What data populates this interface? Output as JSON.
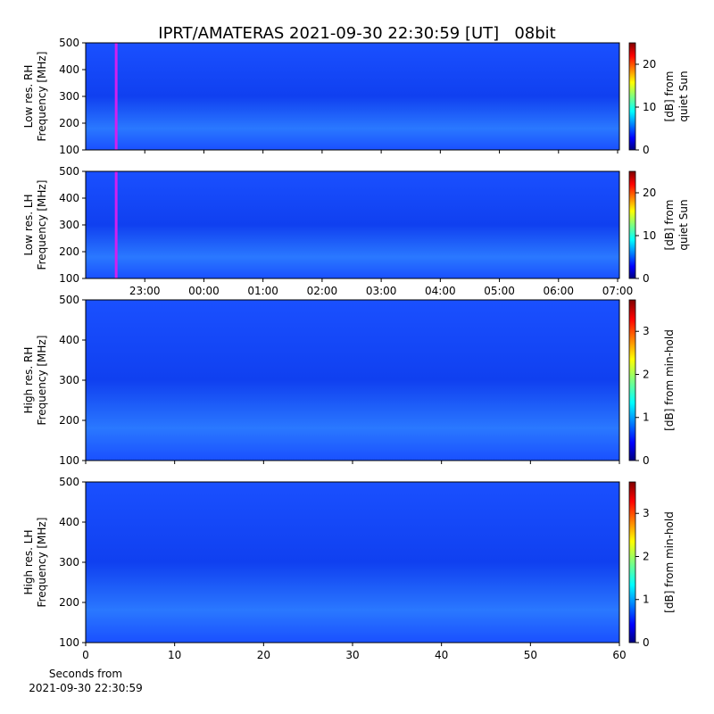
{
  "title": "IPRT/AMATERAS 2021-09-30 22:30:59 [UT]   08bit",
  "chart_data": [
    {
      "type": "spectrogram",
      "ylabel": [
        "Low res. RH",
        "Frequency [MHz]"
      ],
      "xlim": [
        22.0,
        31.03
      ],
      "xticks": [
        23,
        24,
        25,
        26,
        27,
        28,
        29,
        30,
        31
      ],
      "show_xtick_labels": false,
      "ylim": [
        100,
        500
      ],
      "yticks": [
        100,
        200,
        300,
        400,
        500
      ],
      "marker": 22.516,
      "marker_color": "#d020f0",
      "colorbar": {
        "clim": [
          0,
          25
        ],
        "cticks": [
          0,
          10,
          20
        ],
        "label": [
          "[dB] from",
          "quiet Sun"
        ]
      }
    },
    {
      "type": "spectrogram",
      "ylabel": [
        "Low res. LH",
        "Frequency [MHz]"
      ],
      "xlim": [
        22.0,
        31.03
      ],
      "xticks": [
        {
          "value": 23,
          "label": "23:00"
        },
        {
          "value": 24,
          "label": "00:00"
        },
        {
          "value": 25,
          "label": "01:00"
        },
        {
          "value": 26,
          "label": "02:00"
        },
        {
          "value": 27,
          "label": "03:00"
        },
        {
          "value": 28,
          "label": "04:00"
        },
        {
          "value": 29,
          "label": "05:00"
        },
        {
          "value": 30,
          "label": "06:00"
        },
        {
          "value": 31,
          "label": "07:00"
        }
      ],
      "show_xtick_labels": true,
      "ylim": [
        100,
        500
      ],
      "yticks": [
        100,
        200,
        300,
        400,
        500
      ],
      "marker": 22.516,
      "marker_color": "#d020f0",
      "colorbar": {
        "clim": [
          0,
          25
        ],
        "cticks": [
          0,
          10,
          20
        ],
        "label": [
          "[dB] from",
          "quiet Sun"
        ]
      }
    },
    {
      "type": "spectrogram",
      "ylabel": [
        "High res. RH",
        "Frequency [MHz]"
      ],
      "xlim": [
        0,
        60
      ],
      "xticks": [
        0,
        10,
        20,
        30,
        40,
        50,
        60
      ],
      "show_xtick_labels": false,
      "ylim": [
        100,
        500
      ],
      "yticks": [
        100,
        200,
        300,
        400,
        500
      ],
      "colorbar": {
        "clim": [
          0,
          3.73
        ],
        "cticks": [
          0,
          1,
          2,
          3
        ],
        "label": [
          "[dB] from min-hold"
        ]
      }
    },
    {
      "type": "spectrogram",
      "ylabel": [
        "High res. LH",
        "Frequency [MHz]"
      ],
      "xlim": [
        0,
        60
      ],
      "xticks": [
        0,
        10,
        20,
        30,
        40,
        50,
        60
      ],
      "show_xtick_labels": true,
      "xlabel": [
        "Seconds from",
        "2021-09-30 22:30:59"
      ],
      "ylim": [
        100,
        500
      ],
      "yticks": [
        100,
        200,
        300,
        400,
        500
      ],
      "colorbar": {
        "clim": [
          0,
          3.73
        ],
        "cticks": [
          0,
          1,
          2,
          3
        ],
        "label": [
          "[dB] from min-hold"
        ]
      }
    }
  ]
}
